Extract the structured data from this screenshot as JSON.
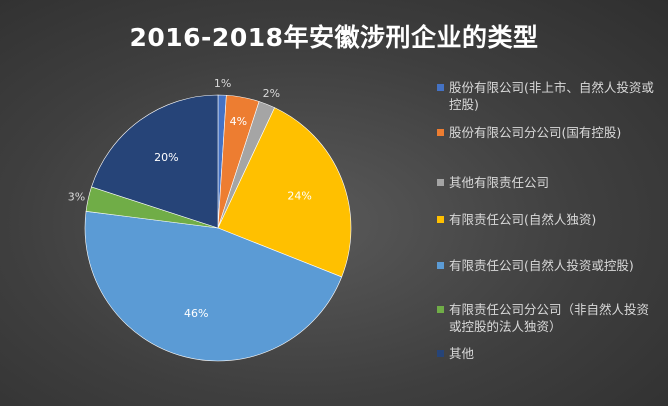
{
  "chart_data": {
    "type": "pie",
    "title": "2016-2018年安徽涉刑企业的类型",
    "categories": [
      "股份有限公司(非上市、自然人投资或控股)",
      "股份有限公司分公司(国有控股)",
      "其他有限责任公司",
      "有限责任公司(自然人独资)",
      "有限责任公司(自然人投资或控股)",
      "有限责任公司分公司（非自然人投资或控股的法人独资）",
      "其他"
    ],
    "values": [
      1,
      4,
      2,
      24,
      46,
      3,
      20
    ],
    "labels": [
      "1%",
      "4%",
      "2%",
      "24%",
      "46%",
      "3%",
      "20%"
    ],
    "colors": [
      "#4472C4",
      "#ED7D31",
      "#A5A5A5",
      "#FFC000",
      "#5B9BD5",
      "#70AD47",
      "#264478"
    ],
    "legend": "right"
  }
}
